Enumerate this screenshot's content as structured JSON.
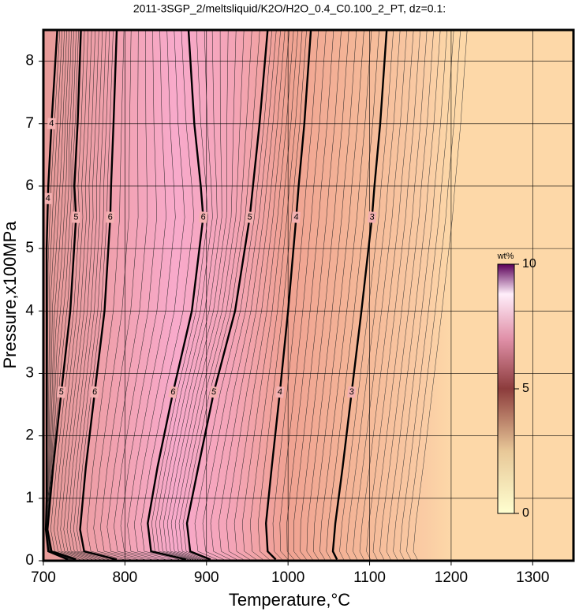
{
  "chart_data": {
    "type": "contour",
    "title": "2011-3SGP_2/meltsliquid/K2O/H2O_0.4_C0.100_2_PT, dz=0.1:",
    "x_label": "Temperature,°C",
    "y_label": "Pressure,x100MPa",
    "xlim": [
      700,
      1350
    ],
    "ylim": [
      0,
      8.5
    ],
    "xticks": [
      700,
      800,
      900,
      1000,
      1100,
      1200,
      1300
    ],
    "yticks": [
      0,
      1,
      2,
      3,
      4,
      5,
      6,
      7,
      8
    ],
    "grid": true,
    "contours": [
      {
        "level": 4,
        "x": [
          730,
          706,
          703,
          704,
          704,
          706,
          710,
          717
        ],
        "y": [
          0.02,
          0.15,
          0.5,
          1,
          5,
          6,
          7,
          8.5
        ]
      },
      {
        "level": 5,
        "x": [
          740,
          710,
          705,
          712,
          722,
          733,
          740,
          738,
          742,
          746
        ],
        "y": [
          0.02,
          0.15,
          0.5,
          1.5,
          2.7,
          4,
          5.5,
          6,
          7,
          8.5
        ]
      },
      {
        "level": 6,
        "x": [
          790,
          750,
          745,
          752,
          763,
          775,
          782,
          783,
          786,
          790
        ],
        "y": [
          0.02,
          0.15,
          0.5,
          1.5,
          2.7,
          4,
          5.5,
          6,
          7,
          8.5
        ]
      },
      {
        "level": 6,
        "x": [
          875,
          832,
          828,
          840,
          859,
          882,
          896,
          893,
          885,
          878
        ],
        "y": [
          0.02,
          0.15,
          0.6,
          1.5,
          2.7,
          4,
          5.5,
          6,
          7,
          8.5
        ]
      },
      {
        "level": 5,
        "x": [
          905,
          880,
          876,
          890,
          909,
          935,
          953,
          957,
          965,
          975
        ],
        "y": [
          0.02,
          0.15,
          0.6,
          1.5,
          2.7,
          4,
          5.5,
          6,
          7,
          8.5
        ]
      },
      {
        "level": 4,
        "x": [
          985,
          975,
          973,
          980,
          990,
          1000,
          1010,
          1013,
          1020,
          1028
        ],
        "y": [
          0.02,
          0.15,
          0.6,
          1.5,
          2.7,
          4,
          5.5,
          6,
          7,
          8.5
        ]
      },
      {
        "level": 3,
        "x": [
          1060,
          1055,
          1058,
          1067,
          1078,
          1090,
          1103,
          1106,
          1113,
          1121
        ],
        "y": [
          0.02,
          0.15,
          0.6,
          1.5,
          2.7,
          4,
          5.5,
          6,
          7,
          8.5
        ]
      }
    ],
    "colorbar": {
      "label": "wt%",
      "lim": [
        0,
        10
      ],
      "ticks": [
        0,
        5,
        10
      ]
    }
  }
}
